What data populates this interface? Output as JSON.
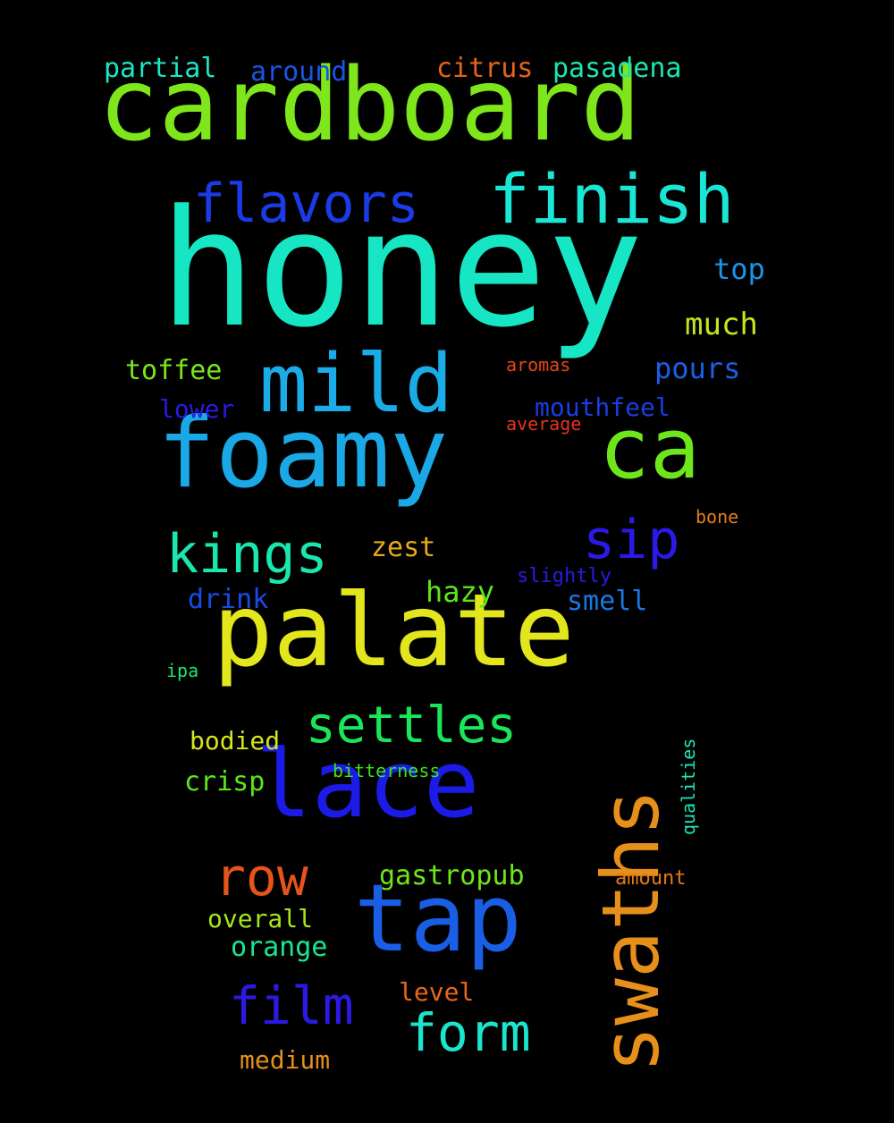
{
  "words": [
    {
      "text": "honey",
      "color": "#17e6c4",
      "font_px": 1,
      "vertical": false,
      "weight": 1.0
    },
    {
      "text": "cardboard",
      "color": "#7ee61a",
      "vertical": false,
      "weight": 0.62
    },
    {
      "text": "palate",
      "color": "#e3e61c",
      "vertical": false,
      "weight": 0.6
    },
    {
      "text": "foamy",
      "color": "#1aa9e6",
      "vertical": false,
      "weight": 0.58
    },
    {
      "text": "lace",
      "color": "#1c1ae6",
      "vertical": false,
      "weight": 0.55
    },
    {
      "text": "tap",
      "color": "#1a5ee6",
      "vertical": false,
      "weight": 0.55
    },
    {
      "text": "ca",
      "color": "#6ee61a",
      "vertical": false,
      "weight": 0.5
    },
    {
      "text": "swaths",
      "color": "#e68f1a",
      "vertical": true,
      "weight": 0.48
    },
    {
      "text": "mild",
      "color": "#1aace6",
      "vertical": false,
      "weight": 0.47
    },
    {
      "text": "finish",
      "color": "#1ae6d6",
      "vertical": false,
      "weight": 0.4
    },
    {
      "text": "flavors",
      "color": "#1a3be6",
      "vertical": false,
      "weight": 0.32
    },
    {
      "text": "kings",
      "color": "#1ae6ad",
      "vertical": false,
      "weight": 0.33
    },
    {
      "text": "sip",
      "color": "#2b1ae6",
      "vertical": false,
      "weight": 0.33
    },
    {
      "text": "settles",
      "color": "#1ae65a",
      "vertical": false,
      "weight": 0.3
    },
    {
      "text": "row",
      "color": "#e6541a",
      "vertical": false,
      "weight": 0.3
    },
    {
      "text": "film",
      "color": "#2b1ae6",
      "vertical": false,
      "weight": 0.3
    },
    {
      "text": "form",
      "color": "#1ae6cf",
      "vertical": false,
      "weight": 0.3
    },
    {
      "text": "gastropub",
      "color": "#6ee61a",
      "vertical": false,
      "weight": 0.15
    },
    {
      "text": "orange",
      "color": "#1ae691",
      "vertical": false,
      "weight": 0.15
    },
    {
      "text": "overall",
      "color": "#a5e61a",
      "vertical": false,
      "weight": 0.13
    },
    {
      "text": "medium",
      "color": "#e6901a",
      "vertical": false,
      "weight": 0.13
    },
    {
      "text": "level",
      "color": "#e6681a",
      "vertical": false,
      "weight": 0.13
    },
    {
      "text": "crisp",
      "color": "#5be61a",
      "vertical": false,
      "weight": 0.13
    },
    {
      "text": "bodied",
      "color": "#d5e61a",
      "vertical": false,
      "weight": 0.13
    },
    {
      "text": "hazy",
      "color": "#5de61a",
      "vertical": false,
      "weight": 0.14
    },
    {
      "text": "drink",
      "color": "#1a4ae6",
      "vertical": false,
      "weight": 0.13
    },
    {
      "text": "smell",
      "color": "#1a78e6",
      "vertical": false,
      "weight": 0.13
    },
    {
      "text": "zest",
      "color": "#e6aa1a",
      "vertical": false,
      "weight": 0.13
    },
    {
      "text": "toffee",
      "color": "#7be61a",
      "vertical": false,
      "weight": 0.13
    },
    {
      "text": "pours",
      "color": "#1a5fe6",
      "vertical": false,
      "weight": 0.13
    },
    {
      "text": "much",
      "color": "#c6e61a",
      "vertical": false,
      "weight": 0.13
    },
    {
      "text": "top",
      "color": "#1a94e6",
      "vertical": false,
      "weight": 0.13
    },
    {
      "text": "lower",
      "color": "#2a1ae6",
      "vertical": false,
      "weight": 0.13
    },
    {
      "text": "mouthfeel",
      "color": "#1a3de6",
      "vertical": false,
      "weight": 0.13
    },
    {
      "text": "partial",
      "color": "#1ae6c3",
      "vertical": false,
      "weight": 0.13
    },
    {
      "text": "around",
      "color": "#1a54e6",
      "vertical": false,
      "weight": 0.13
    },
    {
      "text": "citrus",
      "color": "#e6641a",
      "vertical": false,
      "weight": 0.13
    },
    {
      "text": "pasadena",
      "color": "#1ae6b0",
      "vertical": false,
      "weight": 0.13
    },
    {
      "text": "aromas",
      "color": "#e6461a",
      "vertical": false,
      "weight": 0.09
    },
    {
      "text": "average",
      "color": "#e6341a",
      "vertical": false,
      "weight": 0.09
    },
    {
      "text": "bone",
      "color": "#e67c1a",
      "vertical": false,
      "weight": 0.09
    },
    {
      "text": "slightly",
      "color": "#2a1ae6",
      "vertical": false,
      "weight": 0.09
    },
    {
      "text": "ipa",
      "color": "#1ae670",
      "vertical": false,
      "weight": 0.09
    },
    {
      "text": "bitterness",
      "color": "#3be61a",
      "vertical": false,
      "weight": 0.09
    },
    {
      "text": "qualities",
      "color": "#1ae6b8",
      "vertical": true,
      "weight": 0.09
    },
    {
      "text": "amount",
      "color": "#e67a1a",
      "vertical": false,
      "weight": 0.09
    }
  ]
}
